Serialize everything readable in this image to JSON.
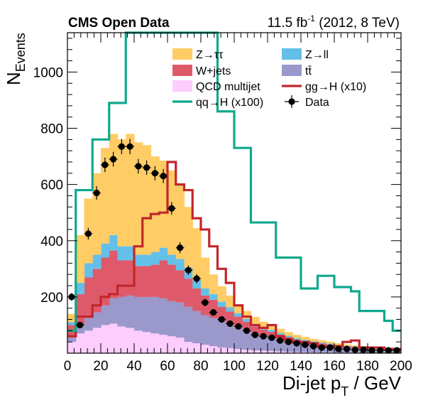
{
  "chart_data": {
    "type": "bar",
    "stacked": true,
    "header": {
      "experiment": "CMS Open Data",
      "lumi_value": "11.5 fb",
      "lumi_exp": "-1",
      "lumi_rest": " (2012, 8 TeV)"
    },
    "xlabel": {
      "main": "Di-jet p",
      "sub": "T",
      "rest": " / GeV"
    },
    "ylabel": {
      "main": "N",
      "sub": "Events"
    },
    "xlim": [
      0,
      200
    ],
    "ylim": [
      0,
      1140
    ],
    "xticks": [
      0,
      20,
      40,
      60,
      80,
      100,
      120,
      140,
      160,
      180,
      200
    ],
    "yticks": [
      200,
      400,
      600,
      800,
      1000
    ],
    "bin_edges": [
      0,
      5,
      10,
      15,
      20,
      25,
      30,
      35,
      40,
      45,
      50,
      55,
      60,
      65,
      70,
      75,
      80,
      85,
      90,
      95,
      100,
      105,
      110,
      115,
      120,
      125,
      130,
      135,
      140,
      145,
      150,
      155,
      160,
      165,
      170,
      175,
      180,
      185,
      190,
      195,
      200
    ],
    "stack": [
      {
        "name": "QCD multijet",
        "color": "#fccdfd",
        "values": [
          40,
          70,
          80,
          90,
          100,
          105,
          95,
          90,
          80,
          75,
          70,
          65,
          60,
          55,
          40,
          35,
          30,
          25,
          20,
          18,
          15,
          12,
          10,
          9,
          8,
          6,
          5,
          4,
          4,
          3,
          3,
          3,
          2,
          2,
          2,
          2,
          1,
          1,
          1,
          1
        ]
      },
      {
        "name": "tt̄",
        "color": "#9b98cc",
        "values": [
          15,
          30,
          45,
          55,
          70,
          90,
          105,
          115,
          120,
          125,
          130,
          130,
          125,
          125,
          125,
          115,
          105,
          100,
          95,
          85,
          80,
          70,
          60,
          55,
          50,
          45,
          40,
          35,
          30,
          28,
          25,
          22,
          20,
          18,
          16,
          14,
          12,
          10,
          9,
          8
        ]
      },
      {
        "name": "W+jets",
        "color": "#de5a6a",
        "values": [
          45,
          110,
          145,
          155,
          170,
          170,
          130,
          125,
          110,
          110,
          115,
          135,
          130,
          115,
          100,
          80,
          70,
          65,
          50,
          45,
          35,
          30,
          25,
          20,
          18,
          15,
          12,
          10,
          9,
          8,
          7,
          6,
          5,
          4,
          4,
          3,
          3,
          2,
          2,
          2
        ]
      },
      {
        "name": "Z→ll",
        "color": "#64c0e8",
        "values": [
          10,
          40,
          50,
          50,
          50,
          55,
          50,
          50,
          40,
          40,
          45,
          45,
          35,
          40,
          40,
          30,
          25,
          20,
          18,
          15,
          12,
          10,
          9,
          8,
          7,
          6,
          5,
          4,
          4,
          3,
          3,
          3,
          2,
          2,
          2,
          2,
          1,
          1,
          1,
          1
        ]
      },
      {
        "name": "Z→ττ",
        "color": "#ffcc66",
        "values": [
          30,
          170,
          230,
          290,
          340,
          360,
          380,
          400,
          400,
          390,
          340,
          310,
          300,
          265,
          215,
          185,
          110,
          70,
          55,
          42,
          30,
          28,
          25,
          20,
          17,
          15,
          13,
          12,
          11,
          9,
          8,
          7,
          6,
          5,
          4,
          4,
          3,
          3,
          2,
          2
        ]
      }
    ],
    "lines": [
      {
        "name": "gg→H (x10)",
        "color": "#c0272c",
        "values": [
          60,
          130,
          130,
          170,
          200,
          210,
          240,
          240,
          380,
          480,
          495,
          500,
          680,
          600,
          580,
          480,
          440,
          380,
          300,
          250,
          170,
          130,
          100,
          90,
          100,
          60,
          50,
          40,
          40,
          35,
          25,
          25,
          25,
          40,
          45,
          20,
          20,
          20,
          15,
          15
        ]
      },
      {
        "name": "qq→H (x100)",
        "color": "#0fa88c",
        "values": [
          80,
          580,
          580,
          760,
          760,
          890,
          890,
          1140,
          1140,
          1140,
          1140,
          1140,
          1140,
          1140,
          1140,
          1140,
          1140,
          1140,
          860,
          860,
          730,
          730,
          465,
          465,
          465,
          340,
          340,
          340,
          230,
          230,
          275,
          275,
          235,
          235,
          220,
          150,
          150,
          150,
          115,
          80
        ]
      }
    ],
    "data_series": {
      "name": "Data",
      "x": [
        2.5,
        7.5,
        12.5,
        17.5,
        22.5,
        27.5,
        32.5,
        37.5,
        42.5,
        47.5,
        52.5,
        57.5,
        62.5,
        67.5,
        72.5,
        77.5,
        82.5,
        87.5,
        92.5,
        97.5,
        102.5,
        107.5,
        112.5,
        117.5,
        122.5,
        127.5,
        132.5,
        137.5,
        142.5,
        147.5,
        152.5,
        157.5,
        162.5,
        167.5,
        172.5,
        177.5,
        182.5,
        187.5,
        192.5,
        197.5
      ],
      "y": [
        200,
        100,
        425,
        570,
        670,
        690,
        735,
        735,
        665,
        660,
        640,
        630,
        515,
        375,
        295,
        265,
        180,
        145,
        120,
        105,
        95,
        80,
        65,
        60,
        55,
        45,
        40,
        35,
        30,
        25,
        20,
        20,
        15,
        15,
        12,
        12,
        10,
        10,
        10,
        10
      ]
    },
    "legend": {
      "position": "top-right",
      "entries": [
        {
          "label": "Z→ττ",
          "kind": "box",
          "color": "#ffcc66"
        },
        {
          "label": "Z→ll",
          "kind": "box",
          "color": "#64c0e8"
        },
        {
          "label": "W+jets",
          "kind": "box",
          "color": "#de5a6a"
        },
        {
          "label": "tt̄",
          "kind": "box",
          "color": "#9b98cc"
        },
        {
          "label": "QCD multijet",
          "kind": "box",
          "color": "#fccdfd"
        },
        {
          "label": "gg→H (x10)",
          "kind": "line",
          "color": "#c0272c"
        },
        {
          "label": "qq→H (x100)",
          "kind": "line",
          "color": "#0fa88c"
        },
        {
          "label": "Data",
          "kind": "marker",
          "color": "#000000"
        }
      ]
    },
    "grid": false
  }
}
